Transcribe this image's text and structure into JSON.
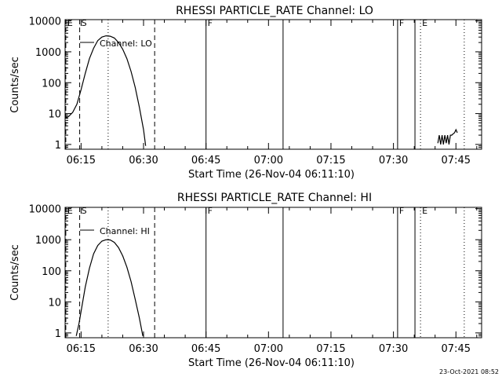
{
  "chart_data": [
    {
      "type": "line",
      "title": "RHESSI PARTICLE_RATE Channel: LO",
      "xlabel": "Start Time (26-Nov-04 06:11:10)",
      "ylabel": "Counts/sec",
      "y_scale": "log",
      "ylim": [
        0.7,
        11000
      ],
      "xlim": [
        "06:11:10",
        "07:51:10"
      ],
      "x_ticks": [
        "06:15",
        "06:30",
        "06:45",
        "07:00",
        "07:15",
        "07:30",
        "07:45"
      ],
      "y_ticks": [
        "1",
        "10",
        "100",
        "1000",
        "10000"
      ],
      "legend": "Channel: LO",
      "series": [
        {
          "name": "Channel: LO",
          "points": [
            [
              "06:11:10",
              7
            ],
            [
              "06:12:00",
              8
            ],
            [
              "06:13:00",
              11
            ],
            [
              "06:14:00",
              20
            ],
            [
              "06:15:00",
              60
            ],
            [
              "06:16:00",
              200
            ],
            [
              "06:17:00",
              600
            ],
            [
              "06:18:00",
              1300
            ],
            [
              "06:19:00",
              2300
            ],
            [
              "06:20:00",
              3000
            ],
            [
              "06:21:00",
              3300
            ],
            [
              "06:22:00",
              3200
            ],
            [
              "06:23:00",
              2800
            ],
            [
              "06:24:00",
              2000
            ],
            [
              "06:25:00",
              1200
            ],
            [
              "06:26:00",
              600
            ],
            [
              "06:27:00",
              230
            ],
            [
              "06:28:00",
              70
            ],
            [
              "06:29:00",
              16
            ],
            [
              "06:30:00",
              3
            ],
            [
              "06:30:30",
              0.9
            ]
          ]
        },
        {
          "name": "noise",
          "points": [
            [
              "07:40:40",
              1.1
            ],
            [
              "07:41:00",
              2
            ],
            [
              "07:41:20",
              1
            ],
            [
              "07:41:40",
              2
            ],
            [
              "07:42:00",
              1
            ],
            [
              "07:42:20",
              2
            ],
            [
              "07:42:40",
              1.1
            ],
            [
              "07:43:00",
              2
            ],
            [
              "07:43:20",
              1
            ],
            [
              "07:43:40",
              2
            ],
            [
              "07:44:00",
              2
            ],
            [
              "07:44:20",
              2.2
            ],
            [
              "07:44:40",
              2.4
            ],
            [
              "07:45:00",
              3
            ],
            [
              "07:45:20",
              2.4
            ]
          ]
        }
      ],
      "markers": [
        {
          "time": "06:11:20",
          "style": "dashed",
          "label": "E"
        },
        {
          "time": "06:14:40",
          "style": "dashed",
          "label": "S"
        },
        {
          "time": "06:21:30",
          "style": "dotted",
          "label": ""
        },
        {
          "time": "06:32:40",
          "style": "dashed",
          "label": ""
        },
        {
          "time": "06:45:00",
          "style": "solid",
          "label": "F"
        },
        {
          "time": "07:03:30",
          "style": "solid",
          "label": ""
        },
        {
          "time": "07:31:00",
          "style": "solid",
          "label": "F"
        },
        {
          "time": "07:35:10",
          "style": "solid",
          "label": ""
        },
        {
          "time": "07:36:30",
          "style": "dotted",
          "label": "E"
        },
        {
          "time": "07:47:00",
          "style": "dotted",
          "label": ""
        }
      ]
    },
    {
      "type": "line",
      "title": "RHESSI PARTICLE_RATE Channel: HI",
      "xlabel": "Start Time (26-Nov-04 06:11:10)",
      "ylabel": "Counts/sec",
      "y_scale": "log",
      "ylim": [
        0.7,
        11000
      ],
      "xlim": [
        "06:11:10",
        "07:51:10"
      ],
      "x_ticks": [
        "06:15",
        "06:30",
        "06:45",
        "07:00",
        "07:15",
        "07:30",
        "07:45"
      ],
      "y_ticks": [
        "1",
        "10",
        "100",
        "1000",
        "10000"
      ],
      "legend": "Channel: HI",
      "series": [
        {
          "name": "Channel: HI",
          "points": [
            [
              "06:13:50",
              0.8
            ],
            [
              "06:14:30",
              2
            ],
            [
              "06:15:00",
              5
            ],
            [
              "06:16:00",
              30
            ],
            [
              "06:17:00",
              120
            ],
            [
              "06:18:00",
              350
            ],
            [
              "06:19:00",
              650
            ],
            [
              "06:20:00",
              900
            ],
            [
              "06:21:00",
              1000
            ],
            [
              "06:22:00",
              980
            ],
            [
              "06:23:00",
              820
            ],
            [
              "06:24:00",
              560
            ],
            [
              "06:25:00",
              300
            ],
            [
              "06:26:00",
              130
            ],
            [
              "06:27:00",
              45
            ],
            [
              "06:28:00",
              12
            ],
            [
              "06:29:00",
              3
            ],
            [
              "06:29:50",
              0.8
            ]
          ]
        }
      ],
      "markers": [
        {
          "time": "06:11:20",
          "style": "dashed",
          "label": "E"
        },
        {
          "time": "06:14:40",
          "style": "dashed",
          "label": "S"
        },
        {
          "time": "06:21:30",
          "style": "dotted",
          "label": ""
        },
        {
          "time": "06:32:40",
          "style": "dashed",
          "label": ""
        },
        {
          "time": "06:45:00",
          "style": "solid",
          "label": "F"
        },
        {
          "time": "07:03:30",
          "style": "solid",
          "label": ""
        },
        {
          "time": "07:31:00",
          "style": "solid",
          "label": "F"
        },
        {
          "time": "07:35:10",
          "style": "solid",
          "label": ""
        },
        {
          "time": "07:36:30",
          "style": "dotted",
          "label": "E"
        },
        {
          "time": "07:47:00",
          "style": "dotted",
          "label": ""
        }
      ]
    }
  ],
  "footer": {
    "timestamp": "23-Oct-2021 08:52"
  }
}
